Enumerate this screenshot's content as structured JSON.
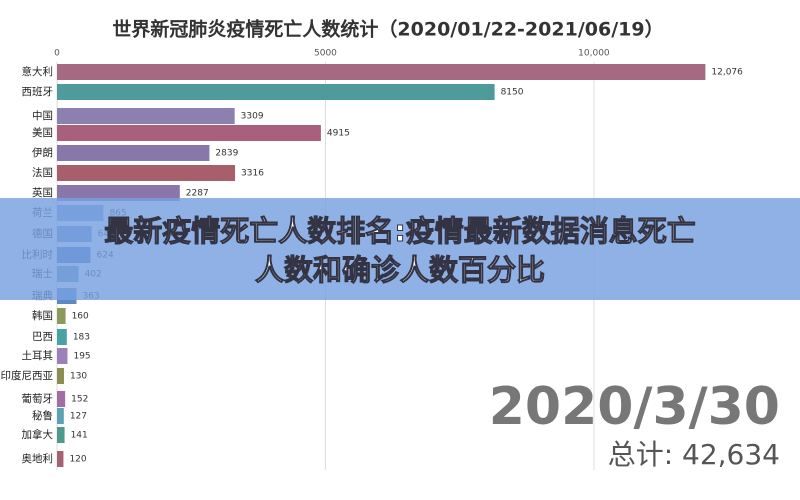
{
  "chart_data": {
    "type": "bar",
    "orientation": "horizontal",
    "title": "世界新冠肺炎疫情死亡人数统计（2020/01/22-2021/06/19）",
    "categories": [
      "意大利",
      "西班牙",
      "中国",
      "美国",
      "伊朗",
      "法国",
      "英国",
      "荷兰",
      "德国",
      "比利时",
      "瑞士",
      "瑞典",
      "韩国",
      "巴西",
      "土耳其",
      "印度尼西亚",
      "葡萄牙",
      "秘鲁",
      "加拿大",
      "奥地利"
    ],
    "values": [
      12076,
      8150,
      3309,
      4915,
      2839,
      3316,
      2287,
      865,
      645,
      624,
      402,
      363,
      160,
      183,
      195,
      130,
      152,
      127,
      141,
      120
    ],
    "value_labels": [
      "12,076",
      "8150",
      "3309",
      "4915",
      "2839",
      "3316",
      "2287",
      "865",
      "645",
      "624",
      "402",
      "363",
      "160",
      "183",
      "195",
      "130",
      "152",
      "127",
      "141",
      "120"
    ],
    "colors": [
      "#a56a82",
      "#4f9a9b",
      "#8b80b0",
      "#a8607c",
      "#8878a9",
      "#a85f6c",
      "#8a76aa",
      "#7f9fd0",
      "#6f8fc8",
      "#4a7dc2",
      "#6a9bb8",
      "#5b8bc2",
      "#8a9a5c",
      "#4aa1a3",
      "#9a82b8",
      "#8c8c52",
      "#a26ca4",
      "#5aa2b3",
      "#4a9b8c",
      "#a46273"
    ],
    "xlim": [
      0,
      13000
    ],
    "xticks": [
      0,
      5000,
      {
        "value": 10000,
        "label": "10,000"
      }
    ],
    "grid": true,
    "date": "2020/3/30",
    "total": "总计: 42,634"
  },
  "banner": {
    "line1": "最新疫情死亡人数排名:疫情最新数据消息死亡",
    "line2": "人数和确诊人数百分比"
  }
}
